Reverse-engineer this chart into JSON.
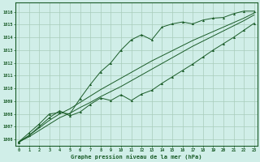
{
  "title": "Graphe pression niveau de la mer (hPa)",
  "bg_color": "#d0eee8",
  "grid_color": "#a8ccbb",
  "line_color": "#1a5c28",
  "xlim": [
    -0.3,
    23.3
  ],
  "ylim": [
    1005.5,
    1016.7
  ],
  "xticks": [
    0,
    1,
    2,
    3,
    4,
    5,
    6,
    7,
    8,
    9,
    10,
    11,
    12,
    13,
    14,
    15,
    16,
    17,
    18,
    19,
    20,
    21,
    22,
    23
  ],
  "yticks": [
    1006,
    1007,
    1008,
    1009,
    1010,
    1011,
    1012,
    1013,
    1014,
    1015,
    1016
  ],
  "series_main": [
    1005.8,
    1006.5,
    1007.2,
    1008.0,
    1008.1,
    1008.0,
    1009.2,
    1010.3,
    1011.3,
    1012.0,
    1013.0,
    1013.8,
    1014.2,
    1013.8,
    1014.8,
    1015.05,
    1015.2,
    1015.05,
    1015.35,
    1015.5,
    1015.55,
    1015.85,
    1016.05,
    1016.05
  ],
  "series_trend1": [
    1005.8,
    1006.3,
    1006.9,
    1007.5,
    1008.0,
    1008.4,
    1008.9,
    1009.4,
    1009.9,
    1010.35,
    1010.8,
    1011.25,
    1011.7,
    1012.15,
    1012.55,
    1012.95,
    1013.35,
    1013.75,
    1014.1,
    1014.45,
    1014.8,
    1015.15,
    1015.5,
    1015.9
  ],
  "series_trend2": [
    1005.8,
    1006.2,
    1006.7,
    1007.2,
    1007.7,
    1008.05,
    1008.5,
    1008.9,
    1009.35,
    1009.75,
    1010.15,
    1010.6,
    1011.05,
    1011.5,
    1011.95,
    1012.4,
    1012.85,
    1013.3,
    1013.7,
    1014.1,
    1014.5,
    1014.9,
    1015.3,
    1015.75
  ],
  "series_lower": [
    1005.75,
    1006.3,
    1007.0,
    1007.7,
    1008.25,
    1007.85,
    1008.15,
    1008.75,
    1009.25,
    1009.05,
    1009.5,
    1009.05,
    1009.55,
    1009.85,
    1010.4,
    1010.9,
    1011.4,
    1011.9,
    1012.45,
    1013.0,
    1013.5,
    1014.0,
    1014.55,
    1015.1
  ]
}
